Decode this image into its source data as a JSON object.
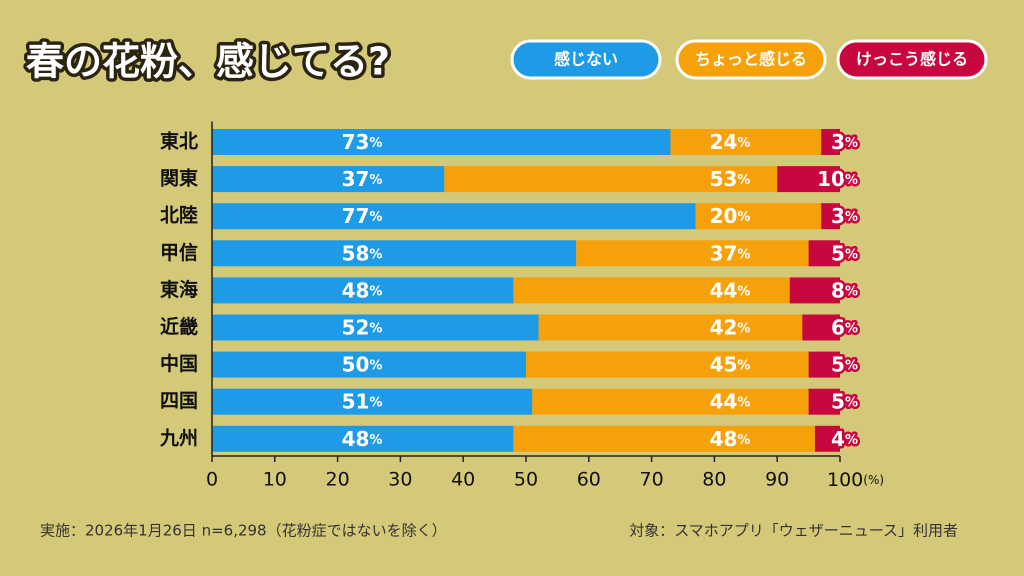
{
  "chart_data": {
    "type": "stacked-bar",
    "orientation": "horizontal",
    "title": "春の花粉、感じてる?",
    "categories": [
      "東北",
      "関東",
      "北陸",
      "甲信",
      "東海",
      "近畿",
      "中国",
      "四国",
      "九州"
    ],
    "series": [
      {
        "name": "感じない",
        "color": "#1e9ae6",
        "values": [
          73,
          37,
          77,
          58,
          48,
          52,
          50,
          51,
          48
        ],
        "value_labels": [
          "73%",
          "37%",
          "77%",
          "58%",
          "48%",
          "52%",
          "50%",
          "51%",
          "48%"
        ]
      },
      {
        "name": "ちょっと感じる",
        "color": "#f6a10a",
        "values": [
          24,
          53,
          20,
          37,
          44,
          42,
          45,
          44,
          48
        ],
        "value_labels": [
          "24%",
          "53%",
          "20%",
          "37%",
          "44%",
          "42%",
          "45%",
          "44%",
          "48%"
        ]
      },
      {
        "name": "けっこう感じる",
        "color": "#c8073e",
        "values": [
          3,
          10,
          3,
          5,
          8,
          6,
          5,
          5,
          4
        ],
        "value_labels": [
          "3%",
          "10%",
          "3%",
          "5%",
          "8%",
          "6%",
          "5%",
          "5%",
          "4%"
        ]
      }
    ],
    "xlim": [
      0,
      100
    ],
    "xticks": [
      0,
      10,
      20,
      30,
      40,
      50,
      60,
      70,
      80,
      90,
      {
        "value": 100,
        "label": "100(%)"
      }
    ],
    "legend": "top-right",
    "annotations": [
      "実施：2026年1月26日 n=6,298（花粉症ではないを除く）",
      "対象：スマホアプリ「ウェザーニュース」利用者"
    ]
  }
}
